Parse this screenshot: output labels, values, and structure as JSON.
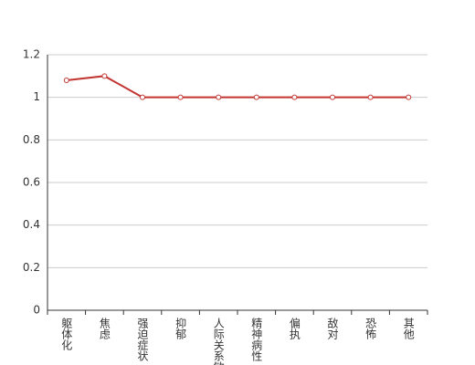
{
  "chart_data": {
    "type": "line",
    "categories": [
      "躯体化",
      "焦虑",
      "强迫症状",
      "抑郁",
      "人际关系敏感",
      "精神病性",
      "偏执",
      "敌对",
      "恐怖",
      "其他"
    ],
    "series": [
      {
        "color": "#c23531",
        "values": [
          1.08,
          1.1,
          1,
          1,
          1,
          1,
          1,
          1,
          1,
          1
        ]
      }
    ],
    "ylim": [
      0,
      1.2
    ],
    "yticks": [
      0,
      0.2,
      0.4,
      0.6,
      0.8,
      1,
      1.2
    ],
    "grid": true
  }
}
